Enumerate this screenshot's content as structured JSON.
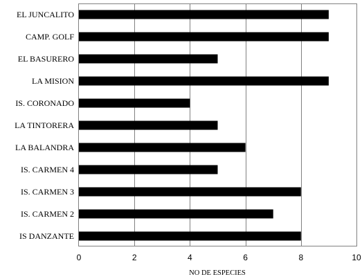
{
  "chart_data": {
    "type": "bar",
    "orientation": "horizontal",
    "categories": [
      "EL JUNCALITO",
      "CAMP. GOLF",
      "EL BASURERO",
      "LA MISION",
      "IS. CORONADO",
      "LA TINTORERA",
      "LA BALANDRA",
      "IS. CARMEN 4",
      "IS. CARMEN 3",
      "IS. CARMEN 2",
      "IS DANZANTE"
    ],
    "values": [
      9,
      9,
      5,
      9,
      4,
      5,
      6,
      5,
      8,
      7,
      8
    ],
    "xticks": [
      "0",
      "2",
      "4",
      "6",
      "8",
      "10"
    ],
    "xlabel": "NO DE ESPECIES",
    "ylabel": "",
    "title": "",
    "xlim": [
      0,
      10
    ],
    "grid": "vertical",
    "bar_color": "#000000",
    "grid_color": "#808080",
    "plot_border_color": "#808080"
  }
}
